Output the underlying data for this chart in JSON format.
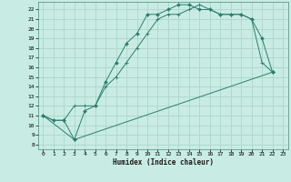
{
  "xlabel": "Humidex (Indice chaleur)",
  "ylabel": "",
  "xlim": [
    -0.5,
    23.5
  ],
  "ylim": [
    7.5,
    22.8
  ],
  "yticks": [
    8,
    9,
    10,
    11,
    12,
    13,
    14,
    15,
    16,
    17,
    18,
    19,
    20,
    21,
    22
  ],
  "xticks": [
    0,
    1,
    2,
    3,
    4,
    5,
    6,
    7,
    8,
    9,
    10,
    11,
    12,
    13,
    14,
    15,
    16,
    17,
    18,
    19,
    20,
    21,
    22,
    23
  ],
  "bg_color": "#c8ece4",
  "grid_color": "#b0d8ce",
  "line_color": "#2d7d6e",
  "line1_x": [
    0,
    1,
    2,
    3,
    4,
    5,
    6,
    7,
    8,
    9,
    10,
    11,
    12,
    13,
    14,
    15,
    16,
    17,
    18,
    19,
    20,
    21,
    22
  ],
  "line1_y": [
    11.0,
    10.5,
    10.5,
    8.5,
    11.5,
    12.0,
    14.5,
    16.5,
    18.5,
    19.5,
    21.5,
    21.5,
    22.0,
    22.5,
    22.5,
    22.0,
    22.0,
    21.5,
    21.5,
    21.5,
    21.0,
    19.0,
    15.5
  ],
  "line2_x": [
    0,
    1,
    2,
    3,
    4,
    5,
    6,
    7,
    8,
    9,
    10,
    11,
    12,
    13,
    14,
    15,
    16,
    17,
    18,
    19,
    20,
    21,
    22
  ],
  "line2_y": [
    11.0,
    10.5,
    10.5,
    12.0,
    12.0,
    12.0,
    14.0,
    15.0,
    16.5,
    18.0,
    19.5,
    21.0,
    21.5,
    21.5,
    22.0,
    22.5,
    22.0,
    21.5,
    21.5,
    21.5,
    21.0,
    16.5,
    15.5
  ],
  "line3_x": [
    0,
    3,
    22
  ],
  "line3_y": [
    11.0,
    8.5,
    15.5
  ]
}
